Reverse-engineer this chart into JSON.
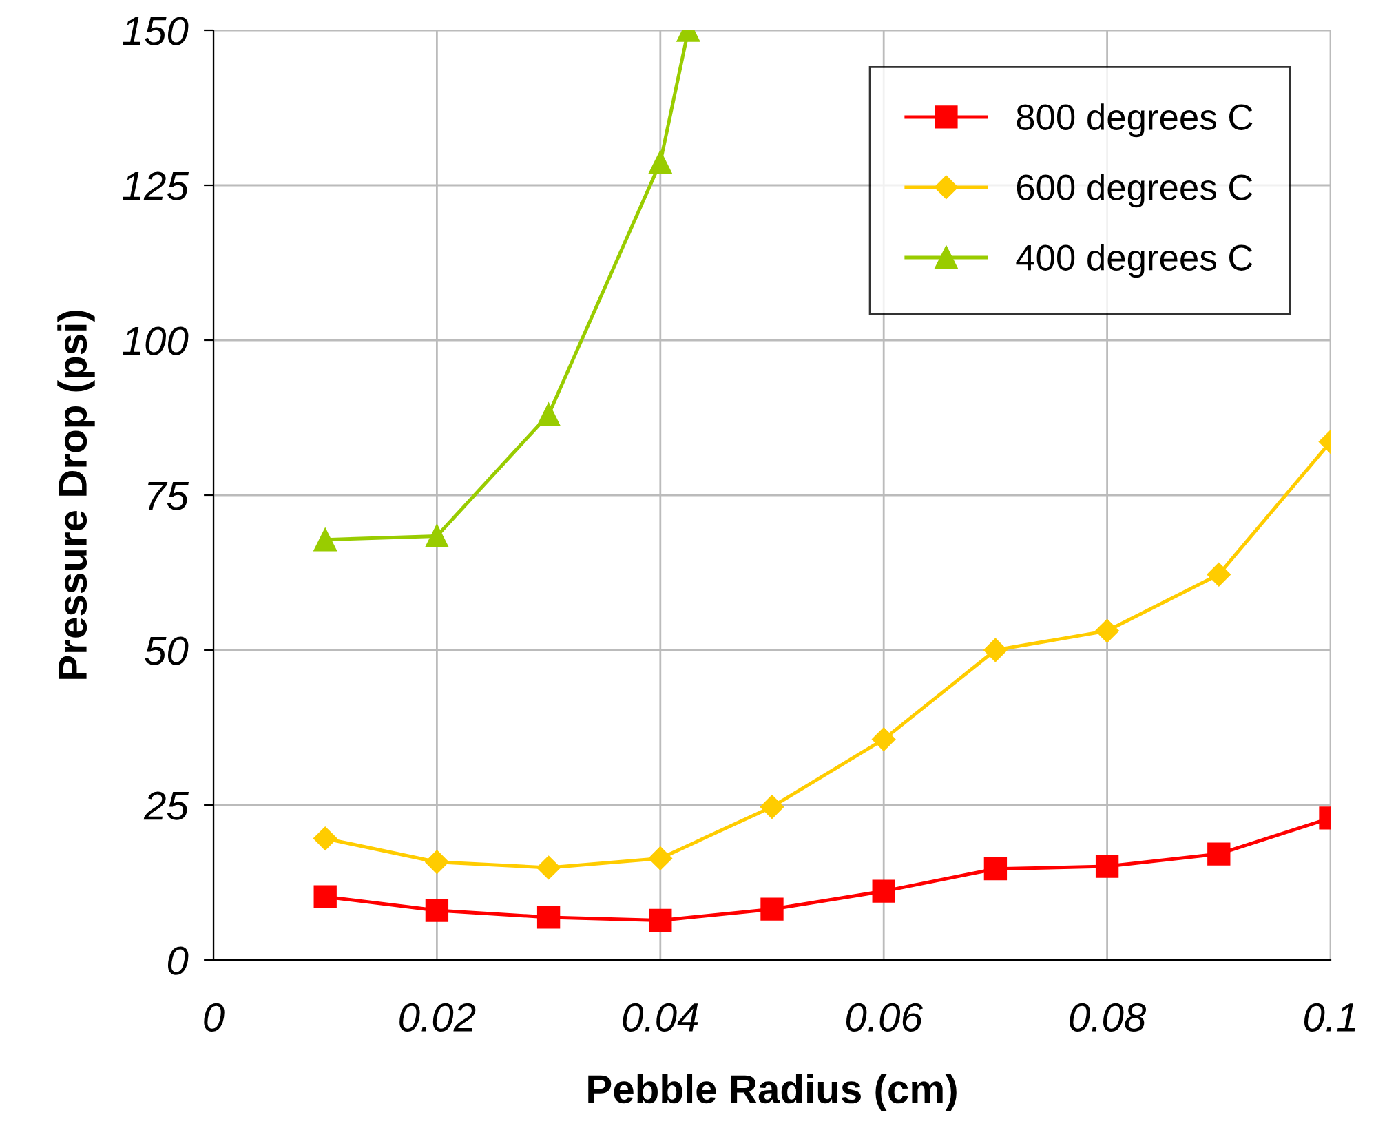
{
  "chart_data": {
    "type": "line",
    "xlabel": "Pebble Radius (cm)",
    "ylabel": "Pressure Drop (psi)",
    "xlim": [
      0,
      0.1
    ],
    "xticks": [
      0,
      {
        "value": 0.02,
        "label": "0.02"
      },
      {
        "value": 0.04,
        "label": "0.04"
      },
      {
        "value": 0.06,
        "label": "0.06"
      },
      {
        "value": 0.08,
        "label": "0.08"
      },
      {
        "value": 0.1,
        "label": "0.1"
      }
    ],
    "ylim": [
      0,
      150
    ],
    "yticks": [
      0,
      25,
      50,
      75,
      100,
      125,
      150
    ],
    "grid": true,
    "legend": "top right",
    "series": [
      {
        "name": "800 degrees C",
        "color": "#ff0000",
        "marker": "square",
        "x": [
          0.01,
          0.02,
          0.03,
          0.04,
          0.05,
          0.06,
          0.07,
          0.08,
          0.09,
          0.1
        ],
        "values": [
          10.2,
          8.0,
          6.9,
          6.4,
          8.2,
          11.1,
          14.7,
          15.1,
          17.1,
          22.9
        ]
      },
      {
        "name": "600 degrees C",
        "color": "#ffcc00",
        "marker": "diamond",
        "x": [
          0.01,
          0.02,
          0.03,
          0.04,
          0.05,
          0.06,
          0.07,
          0.08,
          0.09,
          0.1
        ],
        "values": [
          19.6,
          15.8,
          14.9,
          16.4,
          24.7,
          35.6,
          50.0,
          53.1,
          62.2,
          83.6
        ]
      },
      {
        "name": "400 degrees C",
        "color": "#99cc00",
        "marker": "triangle",
        "x": [
          0.01,
          0.02,
          0.03,
          0.04,
          0.0425
        ],
        "values": [
          67.8,
          68.4,
          88.0,
          128.7,
          150
        ]
      }
    ]
  }
}
